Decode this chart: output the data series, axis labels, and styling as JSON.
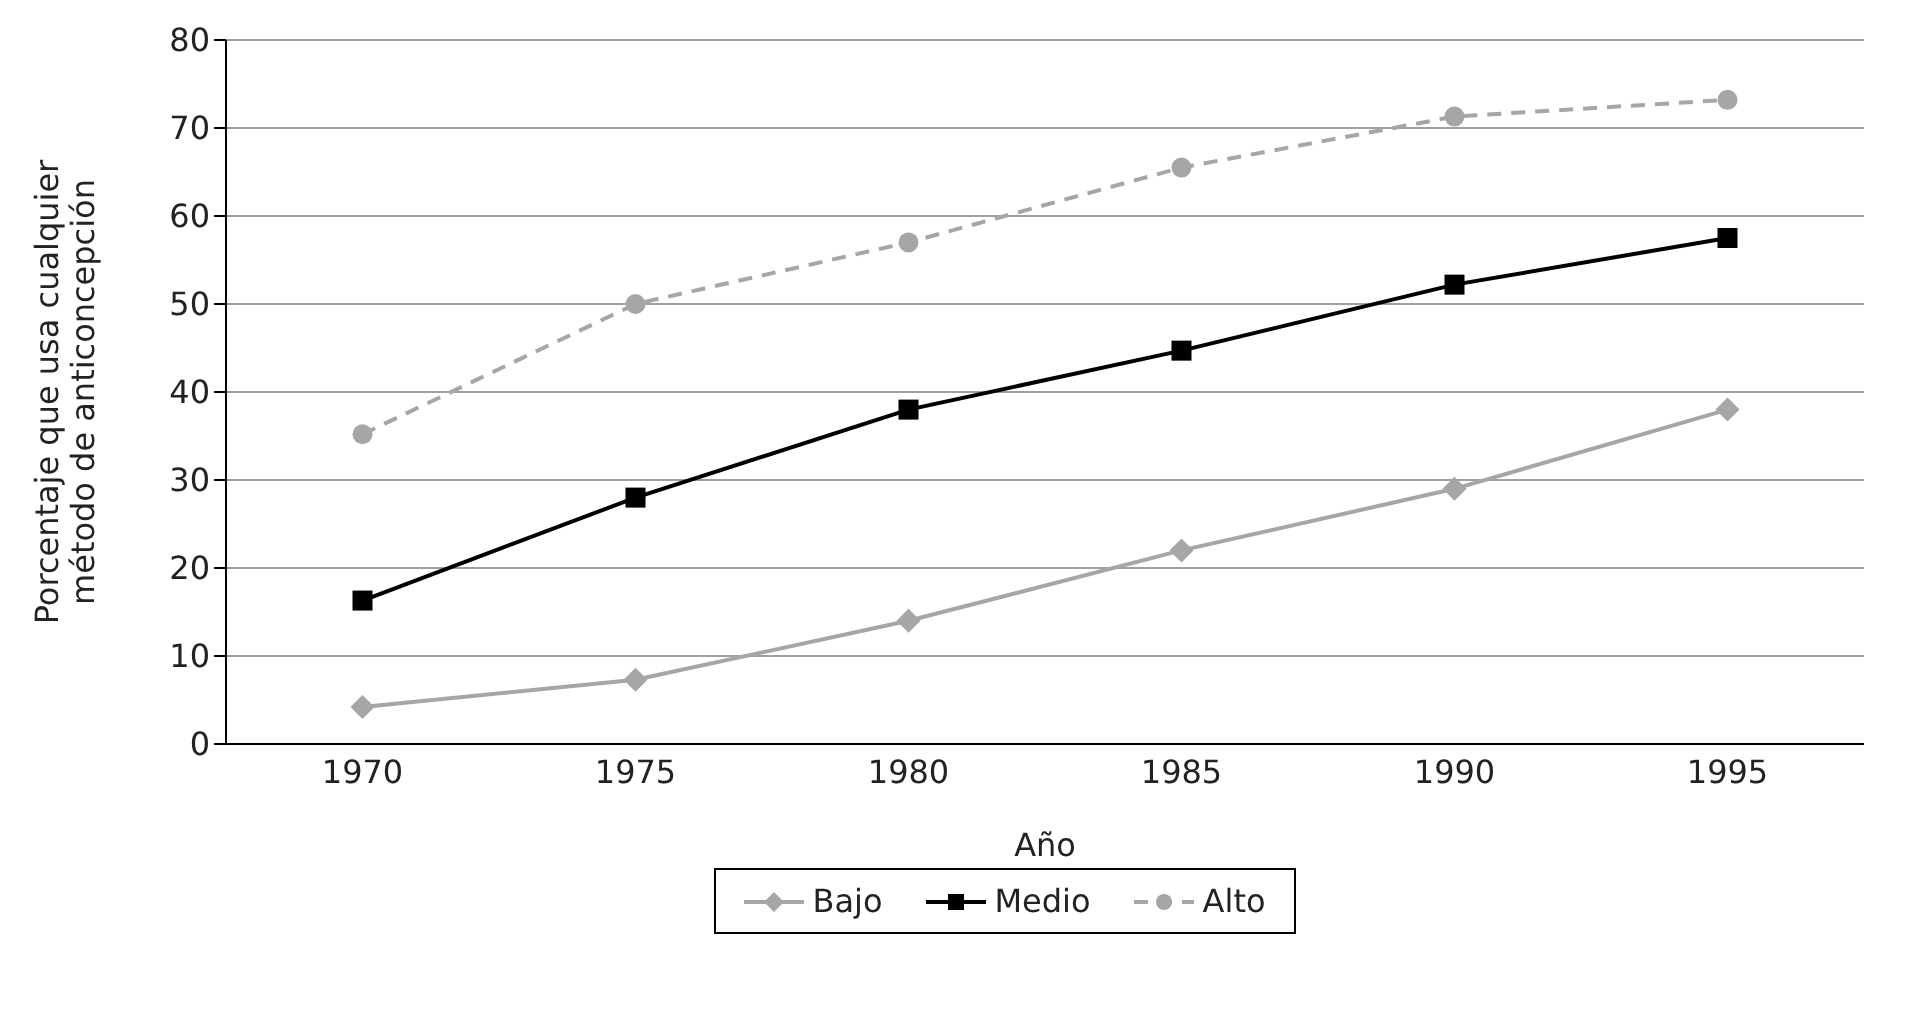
{
  "chart_data": {
    "type": "line",
    "xlabel": "Año",
    "ylabel": "Porcentaje que usa cualquier método de anticoncepción",
    "categories": [
      "1970",
      "1975",
      "1980",
      "1985",
      "1990",
      "1995"
    ],
    "series": [
      {
        "name": "Bajo",
        "color": "#a6a6a6",
        "marker": "diamond",
        "line_style": "solid",
        "values": [
          4.2,
          7.3,
          14,
          22,
          29,
          38
        ]
      },
      {
        "name": "Medio",
        "color": "#000000",
        "marker": "square",
        "line_style": "solid",
        "values": [
          16.3,
          28,
          38,
          44.7,
          52.2,
          57.5
        ]
      },
      {
        "name": "Alto",
        "color": "#a6a6a6",
        "marker": "circle",
        "line_style": "dashed",
        "values": [
          35.2,
          50,
          57,
          65.5,
          71.3,
          73.2
        ]
      }
    ],
    "ylim": [
      0,
      80
    ],
    "yticks": [
      0,
      10,
      20,
      30,
      40,
      50,
      60,
      70,
      80
    ],
    "grid": "y",
    "legend": "bottom"
  }
}
